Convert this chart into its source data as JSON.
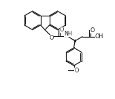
{
  "bg_color": "#ffffff",
  "bond_color": "#1a1a1a",
  "line_width": 0.9,
  "figsize": [
    1.69,
    1.45
  ],
  "dpi": 100,
  "xlim": [
    0,
    10
  ],
  "ylim": [
    0,
    8.6
  ]
}
